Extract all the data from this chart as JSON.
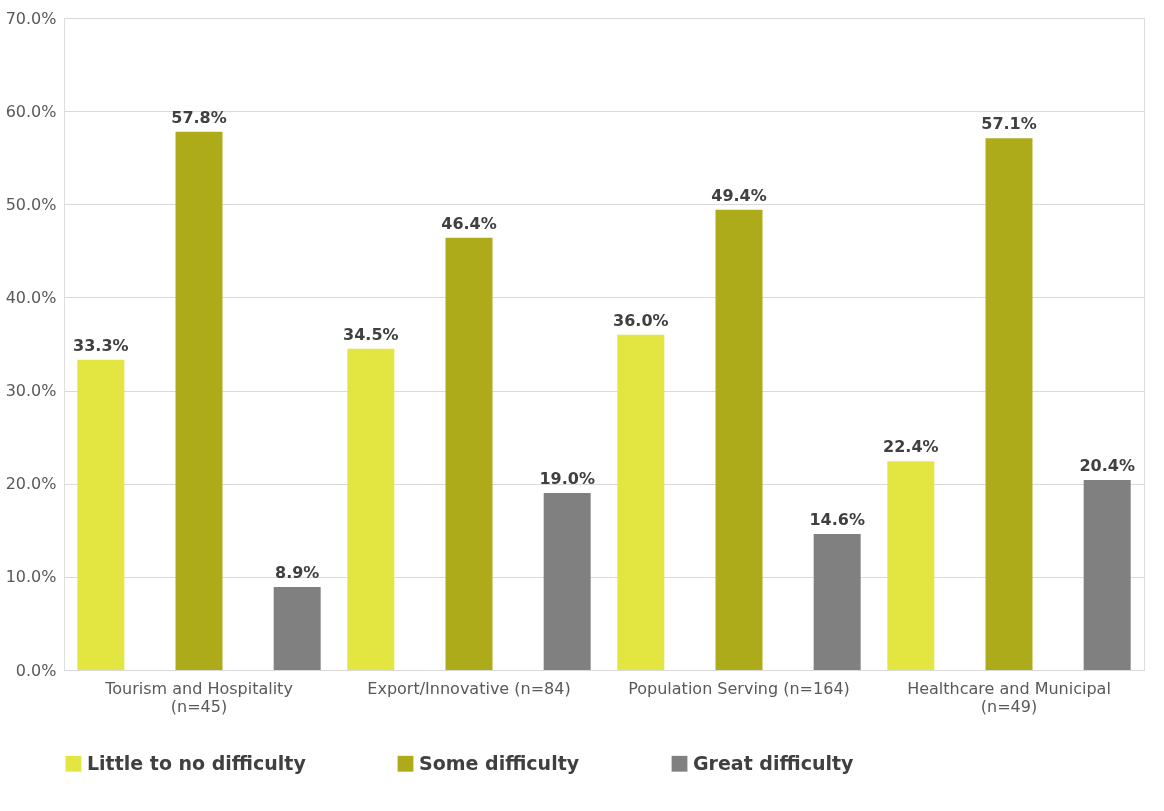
{
  "chart_data": {
    "type": "bar",
    "categories": [
      "Tourism and Hospitality (n=45)",
      "Export/Innovative (n=84)",
      "Population Serving (n=164)",
      "Healthcare and Municipal (n=49)"
    ],
    "series": [
      {
        "name": "Little to no difficulty",
        "color": "#e3e540",
        "values": [
          33.3,
          34.5,
          36.0,
          22.4
        ],
        "value_labels": [
          "33.3%",
          "34.5%",
          "36.0%",
          "22.4%"
        ]
      },
      {
        "name": "Some difficulty",
        "color": "#adab19",
        "values": [
          57.8,
          46.4,
          49.4,
          57.1
        ],
        "value_labels": [
          "57.8%",
          "46.4%",
          "49.4%",
          "57.1%"
        ]
      },
      {
        "name": "Great difficulty",
        "color": "#808080",
        "values": [
          8.9,
          19.0,
          14.6,
          20.4
        ],
        "value_labels": [
          "8.9%",
          "19.0%",
          "14.6%",
          "20.4%"
        ]
      }
    ],
    "ylim": [
      0,
      70
    ],
    "yticks": [
      {
        "value": 0,
        "label": "0.0%"
      },
      {
        "value": 10,
        "label": "10.0%"
      },
      {
        "value": 20,
        "label": "20.0%"
      },
      {
        "value": 30,
        "label": "30.0%"
      },
      {
        "value": 40,
        "label": "40.0%"
      },
      {
        "value": 50,
        "label": "50.0%"
      },
      {
        "value": 60,
        "label": "60.0%"
      },
      {
        "value": 70,
        "label": "70.0%"
      }
    ],
    "grid": "y",
    "legend": "bottom"
  }
}
